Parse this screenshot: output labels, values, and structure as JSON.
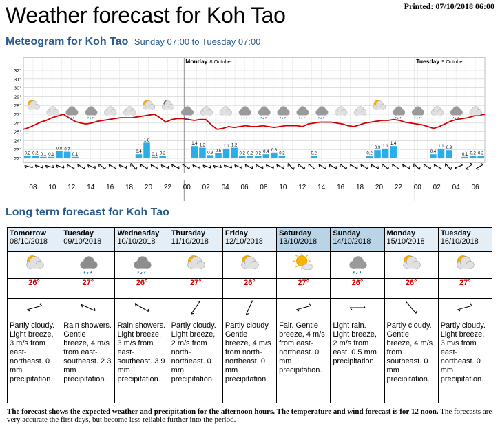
{
  "page_title": "Weather forecast for Koh Tao",
  "printed": "Printed: 07/10/2018 06:00",
  "meteogram": {
    "heading": "Meteogram for Koh Tao",
    "subheading": "Sunday 07:00 to Tuesday 07:00",
    "day_labels": [
      {
        "name": "Monday",
        "date": "8 October"
      },
      {
        "name": "Tuesday",
        "date": "9 October"
      }
    ],
    "y_ticks": [
      "32°",
      "31°",
      "30°",
      "29°",
      "28°",
      "27°",
      "26°",
      "25°",
      "24°",
      "23°",
      "22°"
    ],
    "x_hours": [
      "08",
      "10",
      "12",
      "14",
      "16",
      "18",
      "20",
      "22",
      "00",
      "02",
      "04",
      "06",
      "08",
      "10",
      "12",
      "14",
      "16",
      "18",
      "20",
      "22",
      "00",
      "02",
      "04",
      "06"
    ],
    "colors": {
      "temperature": "#d40000",
      "precip": "#2aaee8",
      "grid": "#cccccc",
      "bg_band": "#eeeeee"
    }
  },
  "chart_data": {
    "type": "line",
    "title": "Meteogram for Koh Tao",
    "x_unit": "hour",
    "ylim": [
      22,
      32
    ],
    "temperature": [
      25.3,
      25.5,
      25.8,
      26.1,
      26.3,
      26.6,
      26.8,
      27.0,
      26.6,
      26.2,
      26.0,
      25.9,
      26.0,
      26.2,
      26.3,
      26.4,
      26.5,
      26.6,
      26.6,
      26.6,
      26.7,
      26.8,
      26.9,
      27.0,
      26.6,
      26.1,
      26.4,
      26.5,
      26.5,
      26.4,
      26.3,
      26.4,
      26.4,
      25.8,
      25.3,
      25.4,
      25.6,
      25.5,
      25.6,
      25.7,
      25.6,
      25.6,
      25.7,
      25.6,
      25.5,
      25.6,
      25.7,
      25.7,
      25.7,
      25.6,
      25.9,
      26.0,
      26.1,
      26.1,
      26.1,
      26.0,
      25.9,
      25.7,
      25.6,
      25.8,
      26.0,
      26.1,
      26.2,
      26.3,
      26.3,
      26.4,
      26.3,
      26.1,
      26.0,
      25.9,
      25.8,
      25.6,
      25.4,
      25.6,
      25.9,
      26.2,
      26.4,
      26.5,
      26.6,
      26.8,
      26.9,
      27.0
    ],
    "precip_mm": [
      0.2,
      0.2,
      0.1,
      0.1,
      0.8,
      0.7,
      0.1,
      0,
      0,
      0,
      0,
      0,
      0,
      0,
      0.4,
      1.8,
      0.1,
      0.2,
      0,
      0,
      0,
      1.4,
      1.2,
      0.3,
      0.5,
      1.1,
      1.2,
      0.2,
      0.2,
      0.2,
      0.4,
      0.6,
      0.2,
      0,
      0,
      0,
      0.2,
      0,
      0,
      0,
      0,
      0,
      0,
      0.2,
      0.9,
      1.1,
      1.4,
      0,
      0,
      0,
      0,
      0.4,
      1.1,
      0.9,
      0,
      0.1,
      0.2,
      0.2
    ],
    "precip_labels": [
      "0.2",
      "0.2",
      "0.1",
      "0.1",
      "0.8",
      "0.7",
      "0.1",
      "",
      "",
      "",
      "",
      "",
      "",
      "",
      "0.4",
      "1.8",
      "0.1",
      "0.2",
      "",
      "",
      "",
      "1.4",
      "1.2",
      "0.3",
      "0.5",
      "1.1",
      "1.2",
      "0.2",
      "0.2",
      "0.2",
      "0.4",
      "0.6",
      "0.2",
      "",
      "",
      "",
      "0.2",
      "",
      "",
      "",
      "",
      "",
      "",
      "0.2",
      "0.9",
      "1.1",
      "1.4",
      "",
      "",
      "",
      "",
      "0.4",
      "1.1",
      "0.9",
      "",
      "0.1",
      "0.2",
      "0.2"
    ],
    "symbols": [
      "pc",
      "cl",
      "rn",
      "rn",
      "cl",
      "cl",
      "pc",
      "nt",
      "rn",
      "cl",
      "cl",
      "rn",
      "rn",
      "rn",
      "rn",
      "rn",
      "cl",
      "cl",
      "pc",
      "rn",
      "rn",
      "cl",
      "rn",
      "cl"
    ],
    "wind_dirs": [
      285,
      290,
      285,
      290,
      300,
      305,
      295,
      310,
      300,
      295,
      320,
      305,
      300,
      295,
      300,
      305,
      295,
      290,
      285,
      290,
      295,
      300,
      300,
      295,
      300,
      320,
      310,
      310,
      305,
      300,
      310,
      300,
      305,
      300,
      310,
      305,
      300,
      315,
      305,
      300,
      320,
      250,
      235,
      240
    ]
  },
  "longterm": {
    "heading": "Long term forecast for Koh Tao",
    "days": [
      {
        "name": "Tomorrow",
        "date": "08/10/2018",
        "temp": "26°",
        "icon": "partly-cloudy-icon",
        "wind_deg": 255,
        "text": "Partly cloudy. Light breeze, 3 m/s from east-northeast. 0 mm precipitation.",
        "weekend": false
      },
      {
        "name": "Tuesday",
        "date": "09/10/2018",
        "temp": "27°",
        "icon": "rain-showers-icon",
        "wind_deg": 295,
        "text": "Rain showers. Gentle breeze, 4 m/s from east-southeast. 2.3 mm precipitation.",
        "weekend": false
      },
      {
        "name": "Wednesday",
        "date": "10/10/2018",
        "temp": "26°",
        "icon": "rain-showers-icon",
        "wind_deg": 300,
        "text": "Rain showers. Light breeze, 3 m/s from east-southeast. 3.9 mm precipitation.",
        "weekend": false
      },
      {
        "name": "Thursday",
        "date": "11/10/2018",
        "temp": "27°",
        "icon": "partly-cloudy-icon",
        "wind_deg": 215,
        "text": "Partly cloudy. Light breeze, 2 m/s from north-northeast. 0 mm precipitation.",
        "weekend": false
      },
      {
        "name": "Friday",
        "date": "12/10/2018",
        "temp": "26°",
        "icon": "partly-cloudy-icon",
        "wind_deg": 205,
        "text": "Partly cloudy. Gentle breeze, 4 m/s from north-northeast. 0 mm precipitation.",
        "weekend": false
      },
      {
        "name": "Saturday",
        "date": "13/10/2018",
        "temp": "27°",
        "icon": "fair-icon",
        "wind_deg": 255,
        "text": "Fair. Gentle breeze, 4 m/s from east-northeast. 0 mm precipitation.",
        "weekend": true
      },
      {
        "name": "Sunday",
        "date": "14/10/2018",
        "temp": "26°",
        "icon": "light-rain-icon",
        "wind_deg": 270,
        "text": "Light rain. Light breeze, 2 m/s from east. 0.5 mm precipitation.",
        "weekend": true
      },
      {
        "name": "Monday",
        "date": "15/10/2018",
        "temp": "26°",
        "icon": "partly-cloudy-icon",
        "wind_deg": 320,
        "text": "Partly cloudy. Gentle breeze, 4 m/s from southeast. 0 mm precipitation.",
        "weekend": false
      },
      {
        "name": "Tuesday",
        "date": "16/10/2018",
        "temp": "27°",
        "icon": "partly-cloudy-icon",
        "wind_deg": 255,
        "text": "Partly cloudy. Light breeze, 3 m/s from east-northeast. 0 mm precipitation.",
        "weekend": false
      }
    ]
  },
  "footnote": {
    "bold": "The forecast shows the expected weather and precipitation for the afternoon hours. The temperature and wind forecast is for 12 noon.",
    "normal": " The forecasts are very accurate the first days, but become less reliable further into the period."
  }
}
